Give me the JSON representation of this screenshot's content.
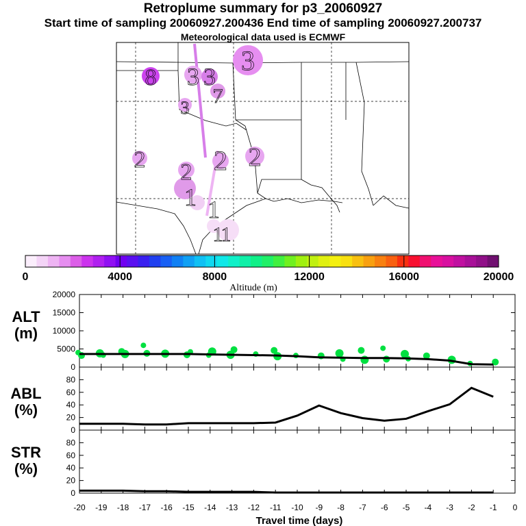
{
  "header": {
    "title": "Retroplume summary for p3_20060927",
    "sampling": "Start time of sampling 20060927.200436     End time of sampling 20060927.200737",
    "meteo": "Meteorological data used is ECMWF"
  },
  "map_labels": [
    {
      "text": "3",
      "color": "#cc44ee"
    },
    {
      "text": "8",
      "color": "#e7a6f0"
    },
    {
      "text": "3",
      "color": "#e7a6f0"
    },
    {
      "text": "3",
      "color": "#d77ee9"
    },
    {
      "text": "7",
      "color": "#e09ae9"
    },
    {
      "text": "3",
      "color": "#e7a6f0"
    },
    {
      "text": "2",
      "color": "#e7a6f0"
    },
    {
      "text": "2",
      "color": "#e7a6f0"
    },
    {
      "text": "2",
      "color": "#e7a6f0"
    },
    {
      "text": "2",
      "color": "#e7a6f0"
    },
    {
      "text": "1",
      "color": "#e09ae9"
    },
    {
      "text": "1",
      "color": "#f1cff4"
    },
    {
      "text": "1",
      "color": "#f6def7"
    },
    {
      "text": "1",
      "color": "#f6def7"
    }
  ],
  "colorbar": {
    "label": "Altitude (m)",
    "ticks": [
      "0",
      "4000",
      "8000",
      "12000",
      "16000",
      "20000"
    ],
    "colors": [
      "#fbeefc",
      "#f4d4f7",
      "#eeb4f3",
      "#e68ef0",
      "#dc5ee8",
      "#cc33ee",
      "#b020f0",
      "#9010f2",
      "#7000f0",
      "#5a10f0",
      "#3a20f0",
      "#2040f0",
      "#1860f4",
      "#1080f4",
      "#10a0f4",
      "#10c0f4",
      "#10d8f0",
      "#10e8e8",
      "#10f0c8",
      "#10f0a8",
      "#10f088",
      "#20f068",
      "#40f040",
      "#70f020",
      "#a0f010",
      "#c0f010",
      "#e0f010",
      "#f4f010",
      "#f8e010",
      "#f8c010",
      "#f8a010",
      "#f88010",
      "#f86010",
      "#f83010",
      "#f81030",
      "#f01070",
      "#e81098",
      "#d810a0",
      "#c010a0",
      "#a81098",
      "#901088",
      "#701070"
    ]
  },
  "chart_data": [
    {
      "type": "scatter",
      "id": "ALT",
      "ylabel": "ALT\n(m)",
      "ylim": [
        0,
        20000
      ],
      "yticks": [
        "0",
        "5000",
        "10000",
        "15000",
        "20000"
      ],
      "xlim": [
        -20,
        0
      ],
      "series": [
        {
          "name": "median altitude",
          "x": [
            -20,
            -19,
            -18,
            -17,
            -16,
            -15,
            -14,
            -13,
            -12,
            -11,
            -10,
            -9,
            -8,
            -7,
            -6,
            -5,
            -4,
            -3,
            -2,
            -1
          ],
          "values": [
            3600,
            3600,
            3600,
            3600,
            3600,
            3600,
            3500,
            3400,
            3300,
            3200,
            3000,
            2700,
            2600,
            2500,
            2500,
            2400,
            2200,
            1800,
            800,
            700
          ]
        },
        {
          "name": "particle altitudes",
          "color": "#00e040",
          "x": [
            -20,
            -20,
            -19,
            -19,
            -18,
            -18,
            -17,
            -17,
            -16,
            -15,
            -15,
            -14,
            -14,
            -13,
            -13,
            -12,
            -11,
            -11,
            -10,
            -9,
            -8,
            -8,
            -7,
            -7,
            -6,
            -6,
            -5,
            -5,
            -4,
            -3,
            -2,
            -1
          ],
          "values": [
            4000,
            3200,
            3800,
            3300,
            4300,
            3600,
            6000,
            3800,
            3700,
            4200,
            3400,
            4300,
            3300,
            4800,
            3400,
            3600,
            4600,
            3000,
            3200,
            3100,
            3800,
            2200,
            4600,
            2000,
            5200,
            2200,
            3600,
            2300,
            3100,
            2000,
            1000,
            1400
          ]
        }
      ]
    },
    {
      "type": "line",
      "id": "ABL",
      "ylabel": "ABL\n(%)",
      "ylim": [
        0,
        100
      ],
      "yticks": [
        "0",
        "20",
        "40",
        "60",
        "80"
      ],
      "xlim": [
        -20,
        0
      ],
      "x": [
        -20,
        -19,
        -18,
        -17,
        -16,
        -15,
        -14,
        -13,
        -12,
        -11,
        -10,
        -9,
        -8,
        -7,
        -6,
        -5,
        -4,
        -3,
        -2,
        -1
      ],
      "values": [
        10,
        10,
        10,
        9,
        9,
        11,
        11,
        11,
        11,
        12,
        23,
        39,
        27,
        19,
        15,
        18,
        30,
        41,
        67,
        53
      ]
    },
    {
      "type": "line",
      "id": "STR",
      "ylabel": "STR\n(%)",
      "ylim": [
        0,
        100
      ],
      "yticks": [
        "0",
        "20",
        "40",
        "60",
        "80"
      ],
      "xlim": [
        -20,
        0
      ],
      "x": [
        -20,
        -19,
        -18,
        -17,
        -16,
        -15,
        -14,
        -13,
        -12,
        -11,
        -10,
        -9,
        -8,
        -7,
        -6,
        -5,
        -4,
        -3,
        -2,
        -1
      ],
      "values": [
        4,
        4,
        4,
        3,
        3,
        2,
        2,
        2,
        2,
        1,
        1,
        1,
        1,
        1,
        1,
        1,
        1,
        1,
        1,
        1
      ]
    }
  ],
  "xaxis": {
    "xlabel": "Travel time (days)",
    "ticks": [
      "-20",
      "-19",
      "-18",
      "-17",
      "-16",
      "-15",
      "-14",
      "-13",
      "-12",
      "-11",
      "-10",
      "-9",
      "-8",
      "-7",
      "-6",
      "-5",
      "-4",
      "-3",
      "-2",
      "-1",
      "0"
    ]
  }
}
